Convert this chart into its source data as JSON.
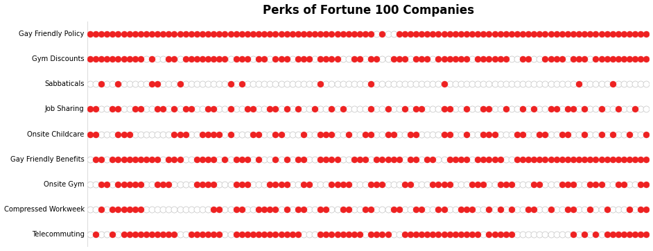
{
  "title": "Perks of Fortune 100 Companies",
  "categories": [
    "Gay Friendly Policy",
    "Gym Discounts",
    "Sabbaticals",
    "Job Sharing",
    "Onsite Childcare",
    "Gay Friendly Benefits",
    "Onsite Gym",
    "Compressed Workweek",
    "Telecommuting"
  ],
  "n_companies": 100,
  "dot_color_filled": "#EE2222",
  "dot_color_empty_face": "#FFFFFF",
  "dot_edgecolor_empty": "#CCCCCC",
  "background_color": "#FFFFFF",
  "title_fontsize": 12,
  "binary_data": {
    "Gay Friendly Policy": [
      1,
      1,
      1,
      1,
      1,
      1,
      1,
      1,
      1,
      1,
      1,
      1,
      1,
      1,
      1,
      1,
      1,
      1,
      1,
      1,
      1,
      1,
      1,
      1,
      1,
      1,
      1,
      1,
      1,
      1,
      1,
      1,
      1,
      1,
      1,
      1,
      1,
      1,
      1,
      1,
      1,
      1,
      1,
      1,
      1,
      1,
      1,
      1,
      1,
      1,
      1,
      0,
      1,
      0,
      0,
      1,
      1,
      1,
      1,
      1,
      1,
      1,
      1,
      1,
      1,
      1,
      1,
      1,
      1,
      1,
      1,
      1,
      1,
      1,
      1,
      1,
      1,
      1,
      1,
      1,
      1,
      1,
      1,
      1,
      1,
      1,
      1,
      1,
      1,
      1,
      1,
      1,
      1,
      1,
      1,
      1,
      1,
      1,
      1,
      1
    ],
    "Gym Discounts": [
      1,
      1,
      1,
      1,
      1,
      1,
      1,
      1,
      1,
      1,
      0,
      1,
      0,
      0,
      1,
      1,
      0,
      1,
      1,
      1,
      1,
      1,
      1,
      1,
      1,
      0,
      1,
      1,
      1,
      0,
      1,
      1,
      0,
      1,
      1,
      1,
      0,
      1,
      1,
      1,
      0,
      1,
      1,
      1,
      1,
      0,
      0,
      1,
      1,
      0,
      1,
      1,
      0,
      0,
      1,
      1,
      1,
      0,
      1,
      1,
      1,
      0,
      1,
      1,
      1,
      1,
      1,
      1,
      0,
      1,
      1,
      1,
      1,
      1,
      1,
      0,
      0,
      1,
      1,
      0,
      0,
      1,
      1,
      1,
      1,
      0,
      1,
      1,
      1,
      0,
      1,
      1,
      1,
      1,
      1,
      1,
      1,
      1,
      1,
      1
    ],
    "Sabbaticals": [
      0,
      0,
      1,
      0,
      0,
      1,
      0,
      0,
      0,
      0,
      0,
      1,
      1,
      0,
      0,
      0,
      1,
      0,
      0,
      0,
      0,
      0,
      0,
      0,
      0,
      1,
      0,
      1,
      0,
      0,
      0,
      0,
      0,
      0,
      0,
      0,
      0,
      0,
      0,
      0,
      0,
      1,
      0,
      0,
      0,
      0,
      0,
      0,
      0,
      0,
      1,
      0,
      0,
      0,
      0,
      0,
      0,
      0,
      0,
      0,
      0,
      0,
      0,
      1,
      0,
      0,
      0,
      0,
      0,
      0,
      0,
      0,
      0,
      0,
      0,
      0,
      0,
      0,
      0,
      0,
      0,
      0,
      0,
      0,
      0,
      0,
      0,
      1,
      0,
      0,
      0,
      0,
      0,
      1,
      0,
      0,
      0,
      0,
      0,
      0
    ],
    "Job Sharing": [
      1,
      1,
      0,
      0,
      1,
      1,
      0,
      0,
      1,
      1,
      0,
      0,
      1,
      1,
      0,
      1,
      0,
      1,
      1,
      0,
      0,
      1,
      1,
      0,
      0,
      1,
      0,
      0,
      1,
      1,
      0,
      0,
      1,
      1,
      0,
      1,
      0,
      1,
      0,
      0,
      1,
      0,
      0,
      1,
      0,
      1,
      0,
      0,
      0,
      0,
      1,
      0,
      0,
      1,
      0,
      0,
      1,
      0,
      1,
      1,
      0,
      0,
      0,
      1,
      1,
      0,
      0,
      1,
      0,
      0,
      1,
      1,
      0,
      0,
      1,
      0,
      0,
      1,
      0,
      1,
      0,
      0,
      1,
      1,
      0,
      1,
      1,
      0,
      1,
      0,
      0,
      1,
      0,
      0,
      1,
      0,
      0,
      1,
      0,
      0
    ],
    "Onsite Childcare": [
      1,
      1,
      0,
      0,
      0,
      1,
      1,
      1,
      0,
      0,
      0,
      0,
      0,
      0,
      0,
      1,
      1,
      1,
      0,
      0,
      1,
      1,
      1,
      1,
      0,
      1,
      0,
      0,
      0,
      1,
      1,
      0,
      0,
      1,
      1,
      0,
      0,
      0,
      1,
      0,
      0,
      1,
      1,
      1,
      0,
      0,
      1,
      0,
      0,
      1,
      1,
      0,
      0,
      1,
      1,
      0,
      0,
      1,
      1,
      0,
      0,
      0,
      0,
      1,
      1,
      0,
      0,
      1,
      0,
      0,
      1,
      1,
      1,
      0,
      0,
      0,
      1,
      1,
      0,
      0,
      1,
      1,
      0,
      0,
      1,
      1,
      0,
      0,
      1,
      0,
      0,
      1,
      0,
      1,
      0,
      0,
      1,
      0,
      0,
      1
    ],
    "Gay Friendly Benefits": [
      0,
      1,
      1,
      0,
      1,
      1,
      1,
      1,
      1,
      1,
      1,
      1,
      1,
      0,
      1,
      1,
      1,
      0,
      0,
      1,
      1,
      1,
      1,
      0,
      1,
      0,
      1,
      1,
      1,
      0,
      1,
      0,
      0,
      1,
      0,
      1,
      0,
      1,
      1,
      0,
      0,
      1,
      1,
      1,
      1,
      0,
      0,
      1,
      1,
      1,
      0,
      1,
      1,
      1,
      1,
      1,
      0,
      1,
      1,
      0,
      1,
      1,
      0,
      0,
      1,
      1,
      1,
      1,
      0,
      1,
      1,
      1,
      1,
      1,
      0,
      0,
      1,
      1,
      1,
      1,
      1,
      1,
      1,
      1,
      1,
      1,
      1,
      1,
      1,
      1,
      1,
      1,
      1,
      1,
      1,
      1,
      1,
      1,
      1,
      1
    ],
    "Onsite Gym": [
      0,
      0,
      1,
      1,
      0,
      1,
      1,
      1,
      1,
      1,
      0,
      0,
      1,
      1,
      1,
      0,
      0,
      0,
      0,
      1,
      1,
      1,
      1,
      0,
      0,
      0,
      1,
      1,
      1,
      0,
      0,
      0,
      1,
      1,
      1,
      1,
      0,
      0,
      1,
      1,
      0,
      0,
      0,
      1,
      1,
      1,
      1,
      0,
      0,
      0,
      1,
      1,
      1,
      0,
      0,
      0,
      1,
      1,
      0,
      0,
      0,
      1,
      1,
      1,
      1,
      0,
      0,
      0,
      1,
      1,
      1,
      0,
      0,
      1,
      1,
      1,
      0,
      0,
      0,
      1,
      1,
      0,
      0,
      0,
      1,
      1,
      1,
      0,
      0,
      1,
      1,
      1,
      0,
      0,
      1,
      1,
      0,
      0,
      1,
      1
    ],
    "Compressed Workweek": [
      0,
      0,
      1,
      0,
      1,
      1,
      1,
      1,
      1,
      1,
      0,
      0,
      0,
      0,
      0,
      0,
      0,
      0,
      0,
      0,
      0,
      0,
      1,
      1,
      0,
      0,
      1,
      1,
      0,
      0,
      1,
      1,
      1,
      1,
      0,
      1,
      0,
      1,
      1,
      0,
      0,
      1,
      1,
      0,
      0,
      1,
      1,
      0,
      0,
      1,
      1,
      0,
      0,
      0,
      1,
      1,
      0,
      0,
      1,
      1,
      0,
      0,
      1,
      1,
      0,
      0,
      1,
      1,
      1,
      0,
      0,
      1,
      0,
      1,
      0,
      1,
      0,
      0,
      1,
      1,
      0,
      0,
      1,
      0,
      0,
      1,
      1,
      0,
      0,
      1,
      0,
      0,
      1,
      0,
      0,
      0,
      1,
      0,
      1,
      1
    ],
    "Telecommuting": [
      0,
      1,
      0,
      0,
      1,
      0,
      1,
      1,
      1,
      1,
      1,
      1,
      1,
      1,
      1,
      1,
      0,
      0,
      1,
      1,
      1,
      1,
      1,
      1,
      0,
      0,
      1,
      1,
      1,
      1,
      1,
      1,
      1,
      1,
      1,
      1,
      1,
      1,
      0,
      0,
      0,
      1,
      1,
      1,
      1,
      1,
      1,
      1,
      1,
      0,
      1,
      1,
      1,
      1,
      0,
      0,
      1,
      1,
      1,
      1,
      1,
      1,
      1,
      1,
      1,
      1,
      1,
      1,
      1,
      1,
      0,
      1,
      1,
      1,
      1,
      1,
      0,
      0,
      0,
      0,
      0,
      0,
      0,
      0,
      0,
      0,
      1,
      0,
      1,
      0,
      1,
      0,
      1,
      1,
      1,
      1,
      1,
      1,
      1,
      1
    ]
  }
}
